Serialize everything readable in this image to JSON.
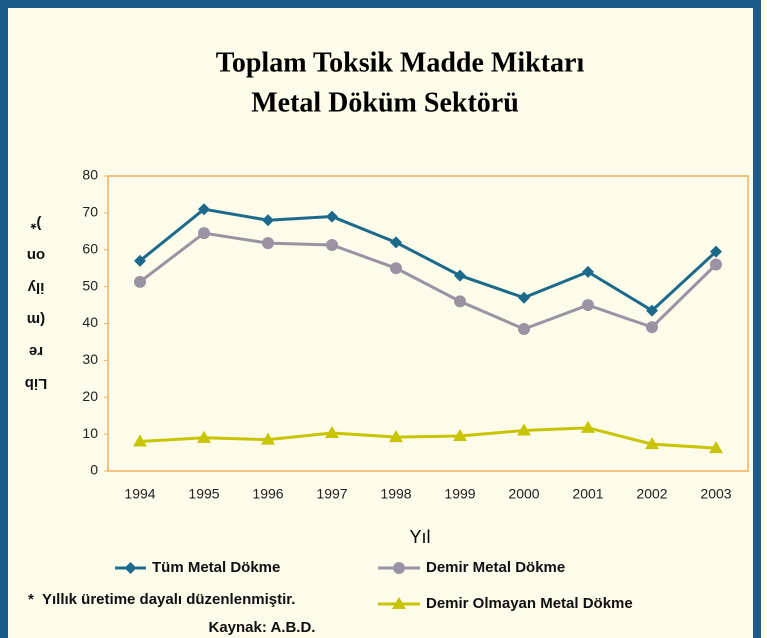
{
  "chart_data": {
    "type": "line",
    "title": [
      "Toplam Toksik Madde Miktarı",
      "Metal Döküm Sektörü"
    ],
    "x_label": "Yıl",
    "y_label": [
      "Lib",
      "re",
      "(m",
      "ily",
      "on",
      ")*"
    ],
    "categories": [
      "1994",
      "1995",
      "1996",
      "1997",
      "1998",
      "1999",
      "2000",
      "2001",
      "2002",
      "2003"
    ],
    "series": [
      {
        "name": "Tüm Metal Dökme",
        "color": "#1b6a8c",
        "marker": "diamond",
        "values": [
          57,
          71,
          68,
          69,
          62,
          53,
          47,
          54,
          43.5,
          59.5
        ]
      },
      {
        "name": "Demir Metal Dökme",
        "color": "#9b93a3",
        "marker": "circle",
        "values": [
          51.3,
          64.5,
          61.8,
          61.3,
          55,
          46,
          38.5,
          45,
          39,
          56
        ]
      },
      {
        "name": "Demir Olmayan Metal Dökme",
        "color": "#c9c400",
        "marker": "triangle",
        "values": [
          8,
          9,
          8.5,
          10.3,
          9.2,
          9.5,
          11,
          11.7,
          7.3,
          6.2
        ]
      }
    ],
    "ylim": [
      0,
      80
    ],
    "yticks": [
      0,
      10,
      20,
      30,
      40,
      50,
      60,
      70,
      80
    ],
    "notes": [
      "*",
      "Yıllık üretime dayalı düzenlenmiştir.",
      "Kaynak: A.B.D."
    ]
  }
}
